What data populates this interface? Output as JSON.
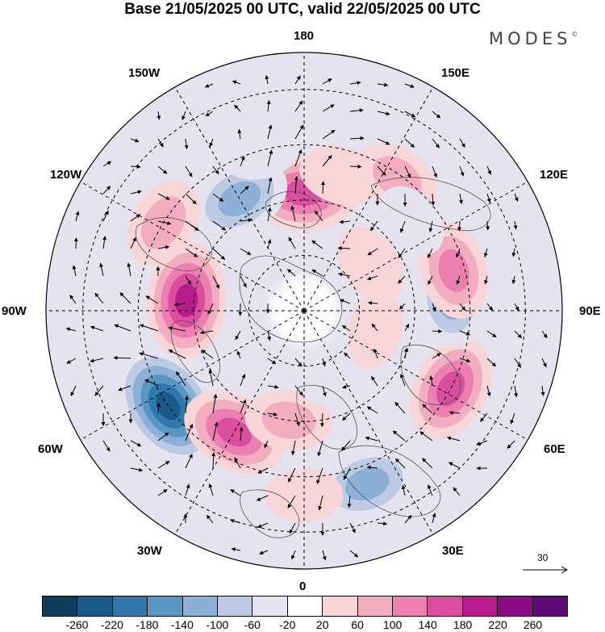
{
  "title": "Base 21/05/2025 00 UTC, valid 22/05/2025 00 UTC",
  "brand": {
    "name": "MODES",
    "mark": "©"
  },
  "longitude_labels": {
    "top": "180",
    "bottom": "0",
    "left": "90W",
    "right": "90E",
    "upper_left_1": "150W",
    "upper_left_2": "120W",
    "upper_right_1": "150E",
    "upper_right_2": "120E",
    "lower_left_1": "60W",
    "lower_left_2": "30W",
    "lower_right_1": "60E",
    "lower_right_2": "30E"
  },
  "reference_vector": {
    "value": "30"
  },
  "colorbar": {
    "colors": [
      "#0f3d5e",
      "#1a5a8a",
      "#2e78ac",
      "#5896c4",
      "#8db0d6",
      "#bccbe3",
      "#e4e3ef",
      "#ffffff",
      "#f8d6d8",
      "#f2adc0",
      "#ea7fb0",
      "#d94e9f",
      "#b81c8c",
      "#8a0c84",
      "#5e0a78"
    ],
    "ticks": [
      "-260",
      "-220",
      "-180",
      "-140",
      "-100",
      "-60",
      "-20",
      "20",
      "60",
      "100",
      "140",
      "180",
      "220",
      "260"
    ]
  },
  "anomaly_centers": [
    {
      "lon": 180,
      "lat": 58,
      "value": 180
    },
    {
      "lon": 165,
      "lat": 52,
      "value": 60
    },
    {
      "lon": 145,
      "lat": 46,
      "value": 80
    },
    {
      "lon": -150,
      "lat": 55,
      "value": -140
    },
    {
      "lon": -165,
      "lat": 45,
      "value": -60
    },
    {
      "lon": -122,
      "lat": 45,
      "value": 100
    },
    {
      "lon": -95,
      "lat": 58,
      "value": 200
    },
    {
      "lon": -55,
      "lat": 45,
      "value": -240
    },
    {
      "lon": -30,
      "lat": 52,
      "value": 160
    },
    {
      "lon": -8,
      "lat": 60,
      "value": 80
    },
    {
      "lon": 20,
      "lat": 40,
      "value": -140
    },
    {
      "lon": 0,
      "lat": 40,
      "value": 40
    },
    {
      "lon": 62,
      "lat": 45,
      "value": 160
    },
    {
      "lon": 95,
      "lat": 50,
      "value": -120
    },
    {
      "lon": 105,
      "lat": 48,
      "value": 120
    },
    {
      "lon": 130,
      "lat": 52,
      "value": -40
    },
    {
      "lon": 125,
      "lat": 68,
      "value": 60
    },
    {
      "lon": 30,
      "lat": 70,
      "value": -60
    },
    {
      "lon": 75,
      "lat": 70,
      "value": 40
    },
    {
      "lon": -120,
      "lat": 75,
      "value": -30
    }
  ]
}
